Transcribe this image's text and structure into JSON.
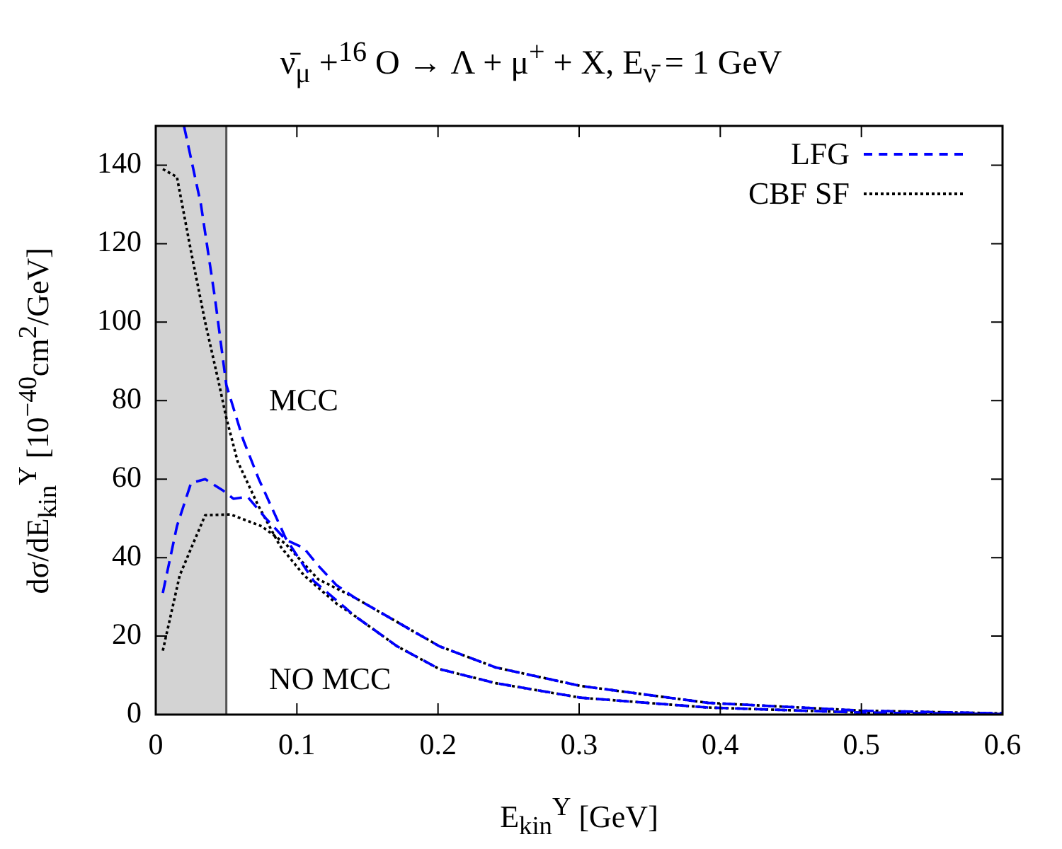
{
  "chart_data": {
    "type": "line",
    "title": "ν̄$_{μ}$ +$^{16}$ O → Λ + μ$^{+}$ + X,     E$_{ν̄}$ = 1 GeV",
    "xlabel": "E$_{kin}$$^{Y}$ [GeV]",
    "ylabel": "dσ/dE$_{kin}$$^{Y}$ [10$^{−40}$cm$^{2}$/GeV]",
    "xlim": [
      0,
      0.6
    ],
    "xticks": [
      0,
      0.1,
      0.2,
      0.3,
      0.4,
      0.5,
      0.6
    ],
    "ylim": [
      0,
      150
    ],
    "yticks": [
      0,
      20,
      40,
      60,
      80,
      100,
      120,
      140
    ],
    "legend": "top right",
    "grid": false,
    "marker": "none",
    "bands": [
      {
        "axis": "x",
        "from": 0,
        "to": 0.05,
        "color": "#d3d3d3"
      }
    ],
    "ref_lines": [
      {
        "axis": "x",
        "value": 0.05,
        "color": "#555555"
      }
    ],
    "annotations": [
      "MCC",
      "NO MCC"
    ],
    "series": [
      {
        "name": "LFG",
        "color": "#0000ff",
        "line_style": "dashed",
        "x": [
          0.02,
          0.032,
          0.042,
          0.05,
          0.062,
          0.073,
          0.092,
          0.112,
          0.135,
          0.14,
          0.171,
          0.201,
          0.241,
          0.301,
          0.391,
          0.5,
          0.6
        ],
        "values": [
          150,
          130,
          106,
          84,
          70,
          60,
          45,
          34,
          27,
          25.4,
          17.4,
          11.6,
          8,
          4.3,
          1.8,
          0.5,
          0.1
        ]
      },
      {
        "color": "#0000ff",
        "line_style": "dashed",
        "x": [
          0.005,
          0.015,
          0.025,
          0.035,
          0.048,
          0.055,
          0.065,
          0.078,
          0.092,
          0.105,
          0.115,
          0.128,
          0.14,
          0.201,
          0.241,
          0.301,
          0.391,
          0.5,
          0.6
        ],
        "values": [
          31,
          48,
          59,
          60,
          57,
          55,
          55.5,
          50,
          44.6,
          42.4,
          38,
          33,
          30,
          17.4,
          12,
          7.3,
          3,
          1,
          0.3
        ]
      },
      {
        "name": "CBF SF",
        "color": "#000000",
        "line_style": "dotted",
        "x": [
          0.005,
          0.015,
          0.025,
          0.035,
          0.045,
          0.05,
          0.058,
          0.072,
          0.088,
          0.105,
          0.128,
          0.14,
          0.171,
          0.201,
          0.241,
          0.301,
          0.391,
          0.5,
          0.6
        ],
        "values": [
          139,
          137,
          118,
          100,
          84,
          75.6,
          64.5,
          53.7,
          43,
          35.5,
          28.3,
          25.4,
          17.4,
          11.6,
          8,
          4.3,
          1.8,
          0.5,
          0.1
        ]
      },
      {
        "color": "#000000",
        "line_style": "dotted",
        "x": [
          0.005,
          0.017,
          0.035,
          0.053,
          0.075,
          0.092,
          0.115,
          0.14,
          0.201,
          0.241,
          0.301,
          0.391,
          0.5,
          0.6
        ],
        "values": [
          16.3,
          35.5,
          50.8,
          51,
          48,
          43.5,
          34.5,
          30,
          17.4,
          12,
          7.3,
          3,
          1,
          0.3
        ]
      }
    ]
  }
}
